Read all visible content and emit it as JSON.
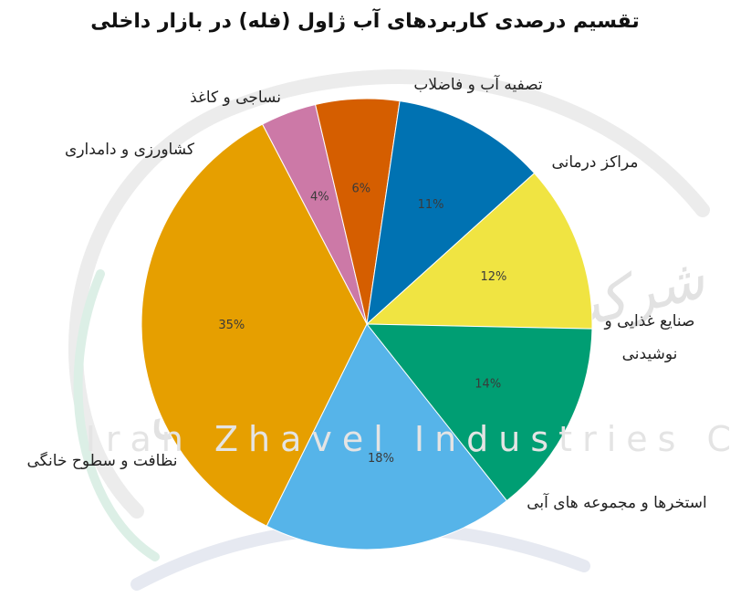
{
  "chart_data": {
    "type": "pie",
    "title": "تقسیم درصدی کاربردهای آب ژاول (فله) در بازار داخلی",
    "slices": [
      {
        "label": "کشاورزی و دامداری",
        "value": 4,
        "pct_label": "4%",
        "color": "#cc79a7"
      },
      {
        "label": "نساجی و کاغذ",
        "value": 6,
        "pct_label": "6%",
        "color": "#d55e00"
      },
      {
        "label": "تصفیه آب و فاضلاب",
        "value": 11,
        "pct_label": "11%",
        "color": "#0072b2"
      },
      {
        "label": "مراکز درمانی",
        "value": 12,
        "pct_label": "12%",
        "color": "#f0e442"
      },
      {
        "label": "صنایع غذایی و نوشیدنی",
        "value": 14,
        "pct_label": "14%",
        "color": "#009e73"
      },
      {
        "label": "استخرها و مجموعه های آبی",
        "value": 18,
        "pct_label": "18%",
        "color": "#56b4e9"
      },
      {
        "label": "نظافت و سطوح خانگی",
        "value": 35,
        "pct_label": "35%",
        "color": "#e69f00"
      }
    ]
  },
  "watermark": {
    "latin": "Iran Zhavel Industries Co",
    "persian": "شرکت صنایع ژاول ایران"
  }
}
